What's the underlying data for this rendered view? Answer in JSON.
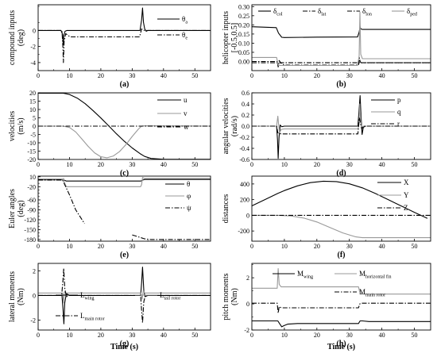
{
  "chart_data": [
    {
      "panel": "(a)",
      "type": "line",
      "ylabel": "compound inputs",
      "ylabel2": "(deg)",
      "xlim": [
        0,
        55
      ],
      "ylim": [
        -5,
        3.2
      ],
      "xticks": [
        0,
        10,
        20,
        30,
        40,
        50
      ],
      "yticks": [
        0,
        -2,
        -4
      ],
      "yticks_minor": [
        3,
        1,
        -1,
        -3,
        -5
      ],
      "series": [
        {
          "name": "θ",
          "sub": "a",
          "style": "solid",
          "color": "#000000",
          "x": [
            0,
            7.3,
            7.8,
            8.0,
            8.2,
            8.6,
            9.2,
            10,
            20,
            32.5,
            33.0,
            33.3,
            33.6,
            34.0,
            34.5,
            35,
            55
          ],
          "y": [
            0,
            0,
            -0.5,
            -1.8,
            -0.6,
            -0.1,
            0,
            0,
            0,
            0,
            1.3,
            2.8,
            1.0,
            0.2,
            -0.1,
            0,
            0
          ]
        },
        {
          "name": "θ",
          "sub": "e",
          "style": "dashdot",
          "color": "#000000",
          "x": [
            0,
            7.6,
            7.9,
            8.05,
            8.3,
            8.8,
            9.5,
            10.2,
            20,
            32.3,
            32.7,
            33.0,
            33.4,
            34,
            55
          ],
          "y": [
            0,
            0,
            -2.2,
            -4.0,
            -1.4,
            -0.4,
            -0.6,
            -0.8,
            -0.8,
            -0.8,
            -0.3,
            0.2,
            0.05,
            0,
            0
          ]
        }
      ]
    },
    {
      "panel": "(b)",
      "type": "line",
      "ylabel": "helicopter inputs",
      "ylabel2": "[-0.5,0.5]",
      "xlim": [
        0,
        55
      ],
      "ylim": [
        -0.05,
        0.31
      ],
      "xticks": [
        0,
        10,
        20,
        30,
        40,
        50
      ],
      "yticks": [
        0.3,
        0.25,
        0.2,
        0.15,
        0.1,
        0.05,
        0.0
      ],
      "yticklabels": [
        "0.30",
        "0.25",
        "0.20",
        "0.15",
        "0.10",
        "0.05",
        "0.00"
      ],
      "series": [
        {
          "name": "δ",
          "sub": "col",
          "style": "solid",
          "color": "#000000",
          "x": [
            0,
            7.5,
            8.2,
            9.2,
            10,
            20,
            32.5,
            33.0,
            33.3,
            33.5,
            34,
            55
          ],
          "y": [
            0.19,
            0.185,
            0.155,
            0.132,
            0.131,
            0.133,
            0.134,
            0.16,
            0.19,
            0.178,
            0.175,
            0.175
          ]
        },
        {
          "name": "δ",
          "sub": "lat",
          "style": "dashdot",
          "color": "#000000",
          "x": [
            0,
            55
          ],
          "y": [
            -0.007,
            -0.007
          ]
        },
        {
          "name": "δ",
          "sub": "lon",
          "style": "dashdot",
          "color": "#000000",
          "x": [
            0,
            7.8,
            8.1,
            8.4,
            9,
            10,
            32.8,
            33.1,
            33.3,
            33.6,
            55
          ],
          "y": [
            0.0,
            0.0,
            -0.03,
            0.005,
            -0.01,
            -0.02,
            -0.02,
            0.02,
            0.0,
            -0.007,
            -0.007
          ]
        },
        {
          "name": "δ",
          "sub": "ped",
          "style": "solid",
          "color": "#999999",
          "x": [
            0,
            7.6,
            8.1,
            8.6,
            10,
            20,
            32.5,
            33.0,
            33.25,
            33.5,
            34,
            55
          ],
          "y": [
            0.022,
            0.022,
            -0.018,
            -0.022,
            -0.022,
            -0.022,
            -0.022,
            0.03,
            0.27,
            0.04,
            0.015,
            0.015
          ]
        }
      ]
    },
    {
      "panel": "(c)",
      "type": "line",
      "ylabel": "velocities",
      "ylabel2": "(m/s)",
      "xlim": [
        0,
        55
      ],
      "ylim": [
        -20,
        20
      ],
      "xticks": [
        0,
        10,
        20,
        30,
        40,
        50
      ],
      "yticks": [
        20,
        15,
        10,
        5,
        0,
        -5,
        -10,
        -15,
        -20
      ],
      "series": [
        {
          "name": "u",
          "style": "solid",
          "color": "#000000",
          "x": [
            0,
            8,
            10,
            12.5,
            15,
            17.5,
            20,
            22.5,
            25,
            27.5,
            30,
            32.5,
            34,
            36,
            40,
            45,
            55
          ],
          "y": [
            19.8,
            19.8,
            19.0,
            16.8,
            13.5,
            9.4,
            4.9,
            0.2,
            -4.6,
            -9.1,
            -13.1,
            -16.5,
            -18.2,
            -19.4,
            -19.9,
            -19.9,
            -19.9
          ]
        },
        {
          "name": "v",
          "style": "solid",
          "color": "#999999",
          "x": [
            0,
            8,
            10,
            12,
            14,
            16,
            18,
            20,
            22,
            24,
            26,
            28,
            30,
            32,
            33,
            34,
            55
          ],
          "y": [
            0,
            0,
            -0.8,
            -3.5,
            -7.8,
            -12.2,
            -16,
            -18.4,
            -19.0,
            -17.9,
            -15.2,
            -11.1,
            -6.2,
            -1.7,
            0,
            0.2,
            0
          ]
        },
        {
          "name": "w",
          "style": "dashdot",
          "color": "#000000",
          "x": [
            0,
            55
          ],
          "y": [
            0,
            0
          ]
        }
      ]
    },
    {
      "panel": "(d)",
      "type": "line",
      "ylabel": "angular velocities",
      "ylabel2": "(rad/s)",
      "xlim": [
        0,
        55
      ],
      "ylim": [
        -0.6,
        0.6
      ],
      "xticks": [
        0,
        10,
        20,
        30,
        40,
        50
      ],
      "yticks": [
        0.6,
        0.4,
        0.2,
        0.0,
        -0.2,
        -0.4,
        -0.6
      ],
      "yticklabels": [
        "0.6",
        "0.4",
        "0.2",
        "0.0",
        "-0.2",
        "-0.4",
        "-0.6"
      ],
      "series": [
        {
          "name": "p",
          "style": "solid",
          "color": "#000000",
          "x": [
            0,
            7.6,
            7.9,
            8.1,
            8.35,
            8.7,
            9.2,
            10,
            32.6,
            33.0,
            33.3,
            33.6,
            33.9,
            34.3,
            35,
            55
          ],
          "y": [
            0,
            0,
            -0.25,
            -0.58,
            -0.2,
            0.02,
            -0.01,
            0,
            0,
            0.3,
            0.55,
            0.15,
            -0.15,
            -0.02,
            0,
            0
          ]
        },
        {
          "name": "q",
          "style": "solid",
          "color": "#999999",
          "x": [
            0,
            7.6,
            8.0,
            8.2,
            8.5,
            9,
            10,
            32.7,
            33.0,
            33.2,
            33.5,
            33.8,
            34.3,
            55
          ],
          "y": [
            0,
            0,
            0.18,
            0.05,
            -0.12,
            -0.06,
            -0.05,
            -0.05,
            0.1,
            0.4,
            0.1,
            -0.05,
            0,
            0
          ]
        },
        {
          "name": "r",
          "style": "dashdot",
          "color": "#000000",
          "x": [
            0,
            7.6,
            8.0,
            9.0,
            10,
            32.6,
            33.1,
            33.4,
            33.8,
            34.3,
            55
          ],
          "y": [
            0,
            0,
            -0.12,
            -0.14,
            -0.14,
            -0.14,
            0.15,
            0.05,
            -0.05,
            0,
            0
          ]
        }
      ]
    },
    {
      "panel": "(e)",
      "type": "line",
      "ylabel": "Euler angles",
      "ylabel2": "(deg)",
      "xlim": [
        0,
        55
      ],
      "ylim": [
        -185,
        12
      ],
      "xticks": [
        0,
        10,
        20,
        30,
        40,
        50
      ],
      "yticks": [
        10,
        -20,
        -60,
        -90,
        -120,
        -150,
        -180
      ],
      "yticks_minor": [
        0,
        -10,
        -30,
        -40,
        -50,
        -70,
        -80,
        -100,
        -110,
        -130,
        -140,
        -160,
        -170
      ],
      "yticklabels": [
        "10",
        "-20",
        "-60",
        "-90",
        "-120",
        "-150",
        "-180"
      ],
      "ytickpos_labels": [
        10,
        -20,
        -60,
        -90,
        -120,
        -150,
        -180
      ],
      "series": [
        {
          "name": "θ",
          "style": "solid",
          "color": "#000000",
          "x": [
            0,
            7.8,
            8.3,
            9,
            10,
            32.8,
            33.3,
            34,
            55
          ],
          "y": [
            2,
            2,
            0,
            -3,
            -3,
            -3,
            0,
            2,
            2
          ]
        },
        {
          "name": "φ",
          "style": "solid",
          "color": "#999999",
          "x": [
            0,
            7.8,
            8.1,
            8.4,
            9,
            10,
            32.7,
            33.0,
            33.3,
            33.6,
            34,
            55
          ],
          "y": [
            0,
            0,
            5,
            -8,
            -20,
            -20,
            -20,
            -14,
            8,
            6,
            5,
            5
          ]
        },
        {
          "name": "ψ",
          "style": "dashdot",
          "color": "#000000",
          "x": [
            0,
            7.8,
            10,
            12,
            14.8
          ],
          "y": [
            0,
            0,
            -45,
            -90,
            -132
          ]
        },
        {
          "name": "ψ",
          "style": "dashdot",
          "color": "#000000",
          "nolegend": true,
          "x": [
            30,
            32,
            34,
            36,
            40,
            55
          ],
          "y": [
            -166,
            -172,
            -178,
            -180,
            -180,
            -180
          ]
        }
      ]
    },
    {
      "panel": "(f)",
      "type": "line",
      "ylabel": "distances",
      "ylabel2": "",
      "xlim": [
        0,
        55
      ],
      "ylim": [
        -330,
        500
      ],
      "xticks": [
        0,
        10,
        20,
        30,
        40,
        50
      ],
      "yticks": [
        400,
        200,
        0,
        -200
      ],
      "series": [
        {
          "name": "X",
          "style": "solid",
          "color": "#000000",
          "x": [
            0,
            4,
            8,
            10,
            14,
            18,
            22,
            26,
            30,
            34,
            38,
            42,
            46,
            50,
            54
          ],
          "y": [
            120,
            200,
            280,
            316,
            376,
            417,
            435,
            430,
            402,
            350,
            278,
            198,
            118,
            38,
            -40
          ]
        },
        {
          "name": "Y",
          "style": "solid",
          "color": "#999999",
          "x": [
            0,
            8,
            12,
            16,
            20,
            24,
            28,
            32,
            34,
            55
          ],
          "y": [
            0,
            0,
            -8,
            -35,
            -85,
            -155,
            -225,
            -275,
            -285,
            -285
          ]
        },
        {
          "name": "Z",
          "style": "dashdot",
          "color": "#000000",
          "x": [
            0,
            55
          ],
          "y": [
            0,
            0
          ]
        }
      ]
    },
    {
      "panel": "(g)",
      "type": "line",
      "ylabel": "lateral moments",
      "ylabel2": "(Nm)",
      "xlim": [
        0,
        55
      ],
      "ylim": [
        -2.8,
        2.6
      ],
      "xticks": [
        0,
        10,
        20,
        30,
        40,
        50
      ],
      "yticks": [
        2,
        0,
        -2
      ],
      "series": [
        {
          "name": "L",
          "sub": "wing",
          "style": "solid",
          "color": "#000000",
          "x": [
            0,
            7.6,
            7.95,
            8.2,
            8.5,
            9,
            10,
            32.7,
            33.0,
            33.3,
            33.7,
            34.1,
            35,
            55
          ],
          "y": [
            0,
            0,
            -1.2,
            -2.3,
            -0.6,
            0.15,
            0,
            0,
            1.0,
            2.3,
            0.4,
            -0.1,
            0,
            0
          ]
        },
        {
          "name": "L",
          "sub": "tail rotor",
          "style": "solid",
          "color": "#999999",
          "x": [
            0,
            7.8,
            8.1,
            8.4,
            9,
            10,
            32.8,
            33.2,
            33.5,
            34,
            55
          ],
          "y": [
            0.2,
            0.2,
            -0.6,
            0.3,
            0.2,
            0.2,
            0.2,
            -0.3,
            0.4,
            0.2,
            0.2
          ]
        },
        {
          "name": "L",
          "sub": "main rotor",
          "style": "dashdot",
          "color": "#000000",
          "x": [
            0,
            7.5,
            7.9,
            8.15,
            8.5,
            9,
            10,
            32.7,
            33.0,
            33.3,
            33.7,
            34.2,
            55
          ],
          "y": [
            0,
            0,
            1.2,
            2.2,
            0.6,
            -0.1,
            0,
            0,
            -1.2,
            -2.2,
            -0.5,
            0,
            0
          ]
        }
      ]
    },
    {
      "panel": "(h)",
      "type": "line",
      "ylabel": "pitch moments",
      "ylabel2": "(Nm)",
      "xlim": [
        0,
        55
      ],
      "ylim": [
        -2,
        3.1
      ],
      "xticks": [
        0,
        10,
        20,
        30,
        40,
        50
      ],
      "yticks": [
        2,
        0,
        -2
      ],
      "yticks_minor": [
        3,
        1,
        -1
      ],
      "series": [
        {
          "name": "M",
          "sub": "wing",
          "style": "solid",
          "color": "#000000",
          "x": [
            0,
            8,
            8.5,
            9.2,
            10,
            11,
            14,
            20,
            32.8,
            33.3,
            34,
            36,
            40,
            55
          ],
          "y": [
            -1.3,
            -1.3,
            -1.5,
            -1.75,
            -1.65,
            -1.55,
            -1.5,
            -1.5,
            -1.5,
            -1.3,
            -1.3,
            -1.35,
            -1.35,
            -1.35
          ]
        },
        {
          "name": "M",
          "sub": "horizontal fin",
          "style": "solid",
          "color": "#999999",
          "x": [
            0,
            7.8,
            8.1,
            8.4,
            9,
            10,
            20,
            32.8,
            33.1,
            33.4,
            34,
            55
          ],
          "y": [
            1.2,
            1.2,
            2.7,
            1.5,
            1.3,
            1.3,
            1.3,
            1.3,
            1.0,
            0.75,
            0.75,
            0.75
          ]
        },
        {
          "name": "M",
          "sub": "main rotor",
          "style": "dashdot",
          "color": "#000000",
          "x": [
            0,
            7.8,
            8.1,
            8.4,
            9,
            10,
            32.8,
            33.2,
            33.6,
            34,
            55
          ],
          "y": [
            0.05,
            0.05,
            -0.7,
            -0.2,
            -0.3,
            -0.3,
            -0.3,
            0.0,
            0.05,
            0.05,
            0.05
          ]
        }
      ]
    }
  ],
  "figure": {
    "xlabel": "Time (s)"
  }
}
